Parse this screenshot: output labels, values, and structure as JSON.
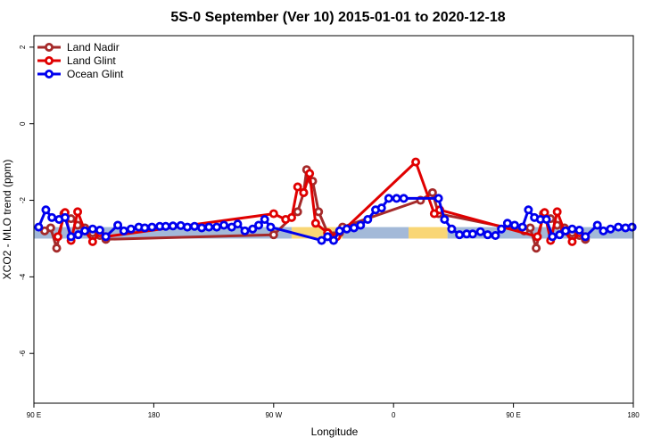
{
  "chart_data": {
    "type": "line",
    "title": "5S-0 September (Ver 10)   2015-01-01 to 2020-12-18",
    "xlabel": "Longitude",
    "ylabel": "XCO2 - MLO trend (ppm)",
    "xlim": [
      0,
      1
    ],
    "ylim": [
      -7.3,
      2.3
    ],
    "x_ticks": [
      {
        "pos": 0.0,
        "label": "90 E"
      },
      {
        "pos": 0.2,
        "label": "180"
      },
      {
        "pos": 0.4,
        "label": "90 W"
      },
      {
        "pos": 0.6,
        "label": "0"
      },
      {
        "pos": 0.8,
        "label": "90 E"
      },
      {
        "pos": 1.0,
        "label": "180"
      }
    ],
    "y_ticks": [
      2,
      0,
      -2,
      -4,
      -6
    ],
    "band": {
      "y_low": -3.0,
      "y_high": -2.7
    },
    "band_colors": {
      "blue": "#a3b9d8",
      "yellow": "#f9d675"
    },
    "band_segments": [
      {
        "x": [
          0.0,
          0.43
        ],
        "color": "blue"
      },
      {
        "x": [
          0.43,
          0.515
        ],
        "color": "yellow"
      },
      {
        "x": [
          0.515,
          0.625
        ],
        "color": "blue"
      },
      {
        "x": [
          0.625,
          0.69
        ],
        "color": "yellow"
      },
      {
        "x": [
          0.69,
          1.0
        ],
        "color": "blue"
      }
    ],
    "legend_position": "top-left",
    "series": [
      {
        "name": "Land Nadir",
        "color": "#a52a2a",
        "points": [
          [
            0.018,
            -2.8
          ],
          [
            0.028,
            -2.72
          ],
          [
            0.038,
            -3.25
          ],
          [
            0.05,
            -2.35
          ],
          [
            0.062,
            -2.48
          ],
          [
            0.073,
            -2.65
          ],
          [
            0.085,
            -2.72
          ],
          [
            0.098,
            -2.85
          ],
          [
            0.11,
            -2.92
          ],
          [
            0.12,
            -3.02
          ],
          [
            0.4,
            -2.9
          ],
          [
            0.44,
            -2.3
          ],
          [
            0.45,
            -1.8
          ],
          [
            0.455,
            -1.2
          ],
          [
            0.465,
            -1.5
          ],
          [
            0.475,
            -2.3
          ],
          [
            0.49,
            -2.85
          ],
          [
            0.51,
            -2.85
          ],
          [
            0.515,
            -2.7
          ],
          [
            0.645,
            -2.0
          ],
          [
            0.665,
            -1.8
          ],
          [
            0.675,
            -2.35
          ],
          [
            0.818,
            -2.8
          ],
          [
            0.828,
            -2.72
          ],
          [
            0.838,
            -3.25
          ],
          [
            0.85,
            -2.35
          ],
          [
            0.862,
            -2.48
          ],
          [
            0.873,
            -2.65
          ],
          [
            0.885,
            -2.72
          ],
          [
            0.898,
            -2.85
          ],
          [
            0.91,
            -2.92
          ],
          [
            0.92,
            -3.02
          ]
        ]
      },
      {
        "name": "Land Glint",
        "color": "#e00000",
        "points": [
          [
            0.04,
            -2.95
          ],
          [
            0.052,
            -2.32
          ],
          [
            0.062,
            -3.05
          ],
          [
            0.073,
            -2.3
          ],
          [
            0.085,
            -2.8
          ],
          [
            0.098,
            -3.08
          ],
          [
            0.11,
            -2.85
          ],
          [
            0.12,
            -2.95
          ],
          [
            0.4,
            -2.35
          ],
          [
            0.42,
            -2.5
          ],
          [
            0.43,
            -2.45
          ],
          [
            0.44,
            -1.65
          ],
          [
            0.45,
            -1.8
          ],
          [
            0.46,
            -1.3
          ],
          [
            0.47,
            -2.6
          ],
          [
            0.49,
            -2.85
          ],
          [
            0.505,
            -2.95
          ],
          [
            0.637,
            -1.0
          ],
          [
            0.668,
            -2.35
          ],
          [
            0.677,
            -2.25
          ],
          [
            0.84,
            -2.95
          ],
          [
            0.852,
            -2.32
          ],
          [
            0.862,
            -3.05
          ],
          [
            0.873,
            -2.3
          ],
          [
            0.885,
            -2.8
          ],
          [
            0.898,
            -3.08
          ],
          [
            0.91,
            -2.85
          ],
          [
            0.92,
            -2.95
          ]
        ]
      },
      {
        "name": "Ocean Glint",
        "color": "#0000ee",
        "points": [
          [
            0.008,
            -2.7
          ],
          [
            0.02,
            -2.25
          ],
          [
            0.03,
            -2.45
          ],
          [
            0.042,
            -2.5
          ],
          [
            0.052,
            -2.45
          ],
          [
            0.062,
            -2.95
          ],
          [
            0.074,
            -2.9
          ],
          [
            0.085,
            -2.8
          ],
          [
            0.098,
            -2.75
          ],
          [
            0.11,
            -2.78
          ],
          [
            0.12,
            -2.95
          ],
          [
            0.14,
            -2.65
          ],
          [
            0.15,
            -2.8
          ],
          [
            0.162,
            -2.75
          ],
          [
            0.175,
            -2.7
          ],
          [
            0.185,
            -2.72
          ],
          [
            0.197,
            -2.7
          ],
          [
            0.21,
            -2.68
          ],
          [
            0.22,
            -2.68
          ],
          [
            0.232,
            -2.67
          ],
          [
            0.245,
            -2.66
          ],
          [
            0.256,
            -2.7
          ],
          [
            0.268,
            -2.68
          ],
          [
            0.28,
            -2.72
          ],
          [
            0.292,
            -2.7
          ],
          [
            0.305,
            -2.7
          ],
          [
            0.317,
            -2.65
          ],
          [
            0.33,
            -2.7
          ],
          [
            0.34,
            -2.62
          ],
          [
            0.352,
            -2.8
          ],
          [
            0.365,
            -2.75
          ],
          [
            0.375,
            -2.65
          ],
          [
            0.385,
            -2.5
          ],
          [
            0.395,
            -2.7
          ],
          [
            0.48,
            -3.05
          ],
          [
            0.49,
            -2.95
          ],
          [
            0.5,
            -3.05
          ],
          [
            0.51,
            -2.8
          ],
          [
            0.522,
            -2.75
          ],
          [
            0.534,
            -2.72
          ],
          [
            0.545,
            -2.65
          ],
          [
            0.557,
            -2.5
          ],
          [
            0.57,
            -2.25
          ],
          [
            0.58,
            -2.2
          ],
          [
            0.592,
            -1.95
          ],
          [
            0.605,
            -1.95
          ],
          [
            0.617,
            -1.95
          ],
          [
            0.675,
            -1.95
          ],
          [
            0.685,
            -2.5
          ],
          [
            0.697,
            -2.75
          ],
          [
            0.71,
            -2.9
          ],
          [
            0.722,
            -2.88
          ],
          [
            0.732,
            -2.88
          ],
          [
            0.745,
            -2.82
          ],
          [
            0.757,
            -2.9
          ],
          [
            0.77,
            -2.92
          ],
          [
            0.78,
            -2.75
          ],
          [
            0.79,
            -2.6
          ],
          [
            0.802,
            -2.65
          ],
          [
            0.815,
            -2.7
          ],
          [
            0.825,
            -2.25
          ],
          [
            0.835,
            -2.45
          ],
          [
            0.845,
            -2.5
          ],
          [
            0.855,
            -2.5
          ],
          [
            0.865,
            -2.95
          ],
          [
            0.877,
            -2.9
          ],
          [
            0.887,
            -2.8
          ],
          [
            0.898,
            -2.75
          ],
          [
            0.91,
            -2.78
          ],
          [
            0.92,
            -2.95
          ],
          [
            0.94,
            -2.65
          ],
          [
            0.95,
            -2.8
          ],
          [
            0.962,
            -2.75
          ],
          [
            0.975,
            -2.7
          ],
          [
            0.987,
            -2.72
          ],
          [
            0.998,
            -2.7
          ]
        ]
      }
    ]
  }
}
